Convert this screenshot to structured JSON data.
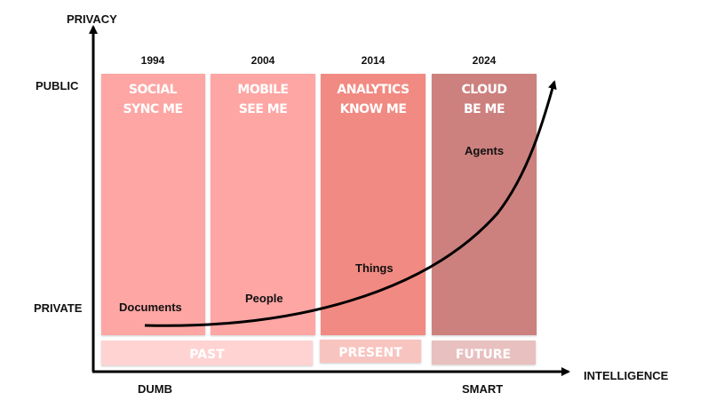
{
  "axes": {
    "y_title": "PRIVACY",
    "y_top": "PUBLIC",
    "y_bottom": "PRIVATE",
    "x_title": "INTELLIGENCE",
    "x_left": "DUMB",
    "x_right": "SMART"
  },
  "columns": [
    {
      "year": "1994",
      "line1": "SOCIAL",
      "line2": "SYNC ME",
      "color": "#fda6a4"
    },
    {
      "year": "2004",
      "line1": "MOBILE",
      "line2": "SEE ME",
      "color": "#fda6a4"
    },
    {
      "year": "2014",
      "line1": "ANALYTICS",
      "line2": "KNOW ME",
      "color": "#f18a82"
    },
    {
      "year": "2024",
      "line1": "CLOUD",
      "line2": "BE ME",
      "color": "#cc817e"
    }
  ],
  "eras": [
    {
      "label": "PAST",
      "color": "#fed3d2"
    },
    {
      "label": "PRESENT",
      "color": "#f8c4c0"
    },
    {
      "label": "FUTURE",
      "color": "#e8c0bf"
    }
  ],
  "curve_points": {
    "documents": "Documents",
    "people": "People",
    "things": "Things",
    "agents": "Agents"
  }
}
